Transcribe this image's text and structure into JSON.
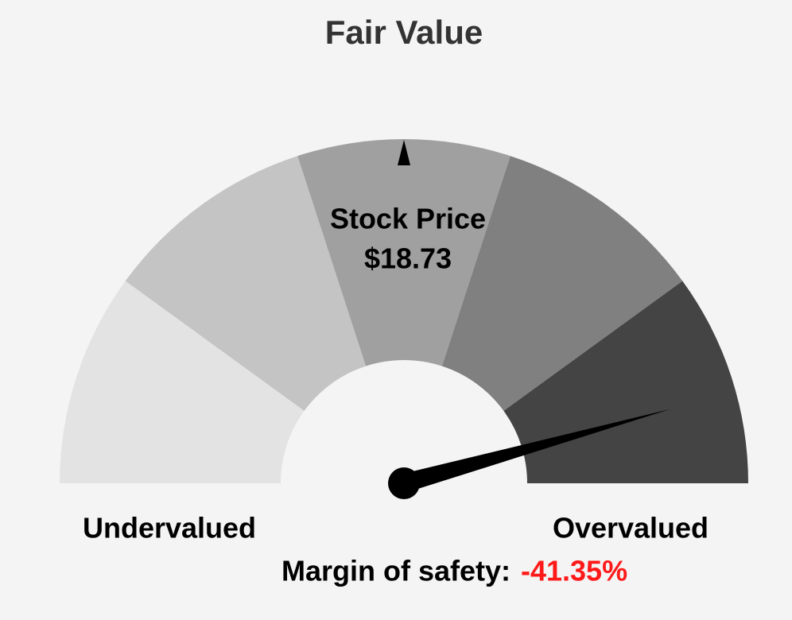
{
  "chart_data": {
    "type": "gauge",
    "title": "Fair Value",
    "center_label": "Stock Price",
    "price_label": "$18.73",
    "left_label": "Undervalued",
    "right_label": "Overvalued",
    "footer_label": "Margin of safety:",
    "value": -41.35,
    "value_label": "-41.35%",
    "value_color": "#ff1a1a",
    "range": [
      50,
      -50
    ],
    "band_colors": [
      "#e3e3e3",
      "#c4c4c4",
      "#a0a0a0",
      "#808080",
      "#444444"
    ],
    "needle_color": "#000000"
  }
}
